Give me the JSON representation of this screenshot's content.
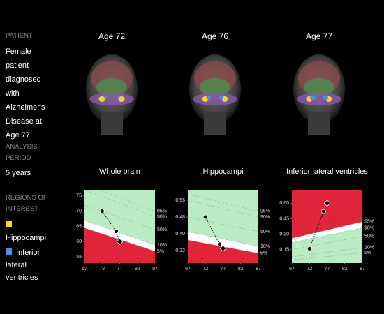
{
  "sidebar": {
    "patient_heading": "PATIENT",
    "patient": "Female patient diagnosed with Alzheimer's Disease at Age 77",
    "period_heading": "ANALYSIS PERIOD",
    "period": "5 years",
    "regions_heading": "REGIONS OF INTEREST",
    "regions": [
      {
        "name": "Hippocampi",
        "color": "#f5d327"
      },
      {
        "name": "Inferior lateral ventricles",
        "color": "#4a8fe0"
      }
    ]
  },
  "scans": [
    "Age 72",
    "Age 76",
    "Age 77"
  ],
  "chart_data": [
    {
      "type": "line",
      "title": "Whole brain",
      "x": [
        72,
        76,
        77
      ],
      "values": [
        70,
        63.4,
        60
      ],
      "xlim": [
        67,
        87
      ],
      "xticks": [
        67,
        72,
        77,
        82,
        87
      ],
      "ylim": [
        53,
        77
      ],
      "yticks": [
        55,
        60,
        65,
        70,
        75
      ],
      "percentile_x": [
        67,
        87
      ],
      "red_zone": "below",
      "percentiles": [
        {
          "name": "95%",
          "values": [
            79,
            70
          ]
        },
        {
          "name": "90%",
          "values": [
            77,
            68.2
          ]
        },
        {
          "name": "50%",
          "values": [
            72,
            63.9
          ]
        },
        {
          "name": "10%",
          "values": [
            67,
            58.9
          ]
        },
        {
          "name": "5%",
          "values": [
            64.5,
            56.9
          ]
        }
      ]
    },
    {
      "type": "line",
      "title": "Hippocampi",
      "x": [
        72,
        76,
        77
      ],
      "values": [
        0.48,
        0.35,
        0.33
      ],
      "xlim": [
        67,
        87
      ],
      "xticks": [
        67,
        72,
        77,
        82,
        87
      ],
      "ylim": [
        0.26,
        0.61
      ],
      "yticks": [
        0.32,
        {
          "value": 0.4,
          "label": "0.40"
        },
        0.48,
        0.56
      ],
      "percentile_x": [
        67,
        87
      ],
      "red_zone": "below",
      "percentiles": [
        {
          "name": "95%",
          "values": [
            0.59,
            0.507
          ]
        },
        {
          "name": "90%",
          "values": [
            0.56,
            0.48
          ]
        },
        {
          "name": "50%",
          "values": [
            0.48,
            0.41
          ]
        },
        {
          "name": "10%",
          "values": [
            0.41,
            0.34
          ]
        },
        {
          "name": "5%",
          "values": [
            0.37,
            0.307
          ]
        }
      ]
    },
    {
      "type": "line",
      "title": "Inferior lateral ventricles",
      "x": [
        72,
        76,
        77
      ],
      "values": [
        0.16,
        0.52,
        0.6
      ],
      "xlim": [
        67,
        87
      ],
      "xticks": [
        67,
        72,
        77,
        82,
        87
      ],
      "ylim": [
        0.02,
        0.73
      ],
      "yticks": [
        0.15,
        {
          "value": 0.3,
          "label": "0.30"
        },
        0.45,
        {
          "value": 0.6,
          "label": "0.60"
        }
      ],
      "percentile_x": [
        67,
        87
      ],
      "red_zone": "above",
      "percentiles": [
        {
          "name": "95%",
          "values": [
            0.26,
            0.42
          ]
        },
        {
          "name": "90%",
          "values": [
            0.22,
            0.36
          ]
        },
        {
          "name": "50%",
          "values": [
            0.15,
            0.28
          ]
        },
        {
          "name": "10%",
          "values": [
            0.08,
            0.17
          ]
        },
        {
          "name": "5%",
          "values": [
            0.05,
            0.12
          ]
        }
      ]
    }
  ]
}
